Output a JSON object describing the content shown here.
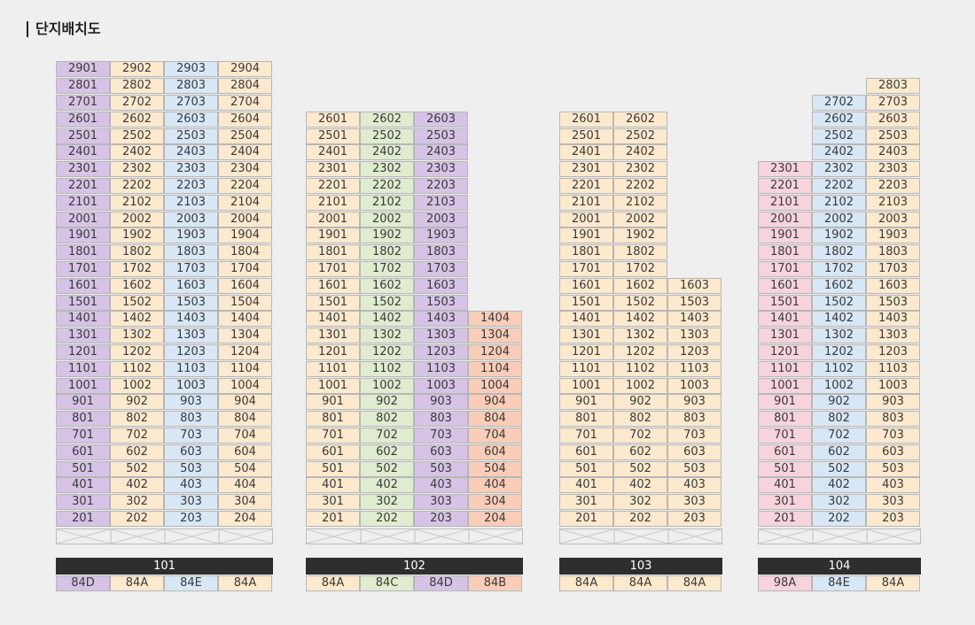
{
  "page_title": "단지배치도",
  "colors": {
    "84A": "#fde9cd",
    "84C": "#dfeccf",
    "84D": "#d6c3e6",
    "84E": "#d8e7f6",
    "84B": "#f9cdb8",
    "98A": "#f7d3dc"
  },
  "buildings": [
    {
      "name": "101",
      "columns": [
        {
          "line": "01",
          "type": "84D",
          "top_floor": 29
        },
        {
          "line": "02",
          "type": "84A",
          "top_floor": 29
        },
        {
          "line": "03",
          "type": "84E",
          "top_floor": 29
        },
        {
          "line": "04",
          "type": "84A",
          "top_floor": 29
        }
      ]
    },
    {
      "name": "102",
      "columns": [
        {
          "line": "01",
          "type": "84A",
          "top_floor": 26
        },
        {
          "line": "02",
          "type": "84C",
          "top_floor": 26
        },
        {
          "line": "03",
          "type": "84D",
          "top_floor": 26
        },
        {
          "line": "04",
          "type": "84B",
          "top_floor": 14
        }
      ]
    },
    {
      "name": "103",
      "columns": [
        {
          "line": "01",
          "type": "84A",
          "top_floor": 26
        },
        {
          "line": "02",
          "type": "84A",
          "top_floor": 26
        },
        {
          "line": "03",
          "type": "84A",
          "top_floor": 16
        }
      ]
    },
    {
      "name": "104",
      "columns": [
        {
          "line": "01",
          "type": "98A",
          "top_floor": 23
        },
        {
          "line": "02",
          "type": "84E",
          "top_floor": 27
        },
        {
          "line": "03",
          "type": "84A",
          "top_floor": 28
        }
      ]
    }
  ]
}
